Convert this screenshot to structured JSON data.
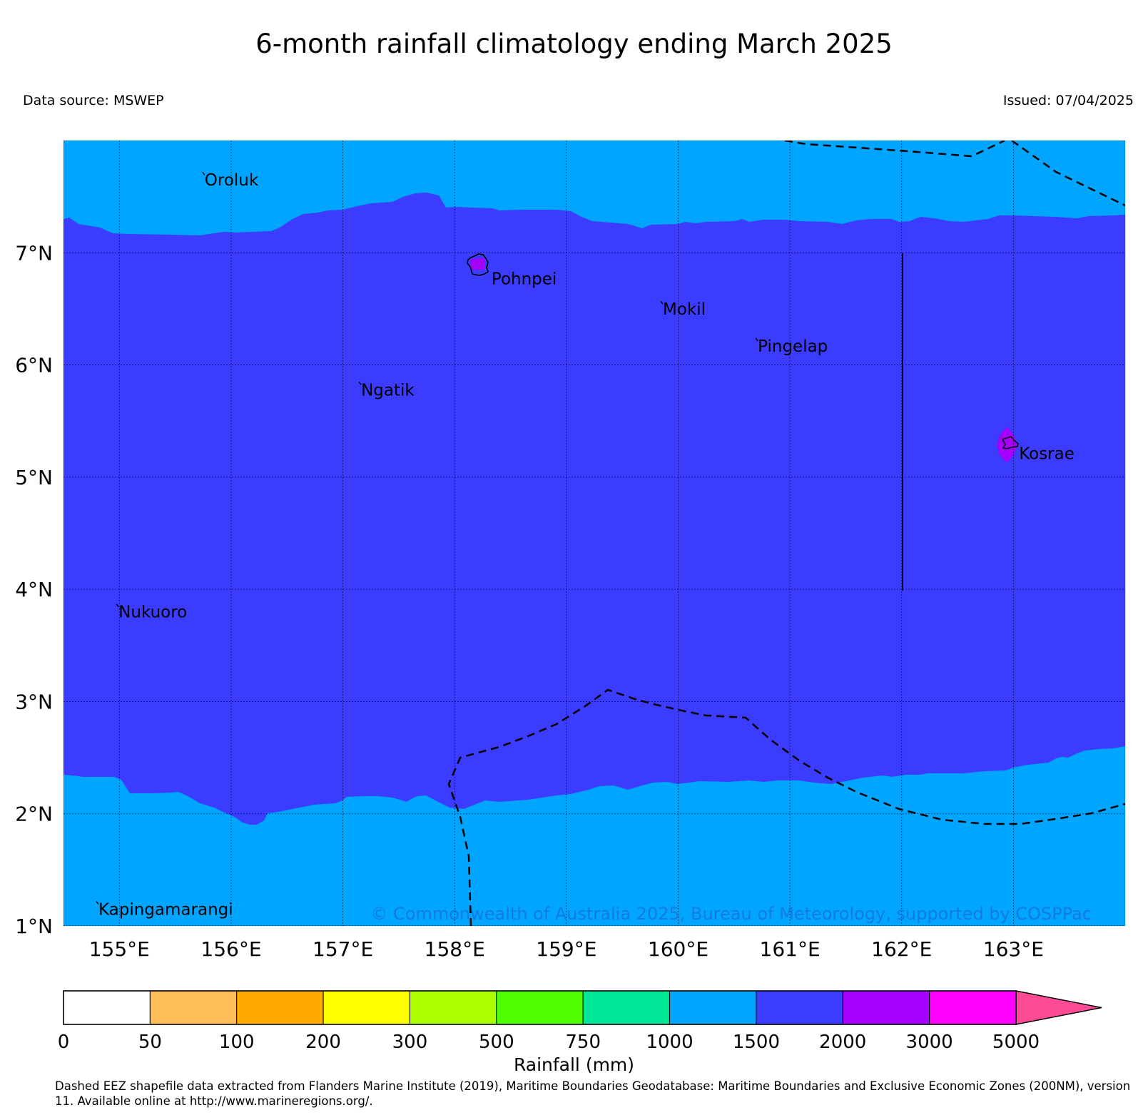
{
  "title": "6-month rainfall climatology ending March 2025",
  "data_source": "Data source: MSWEP",
  "issued": "Issued: 07/04/2025",
  "copyright": "© Commonwealth of Australia 2025, Bureau of Meteorology, supported by COSPPac",
  "footnote": "Dashed EEZ shapefile data extracted from Flanders Marine Institute (2019), Maritime Boundaries Geodatabase: Maritime Boundaries and Exclusive Economic Zones (200NM), version 11. Available online at http://www.marineregions.org/.",
  "map": {
    "lon_range": [
      154.5,
      164.0
    ],
    "lat_range": [
      1.0,
      8.0
    ],
    "lon_ticks": [
      "155°E",
      "156°E",
      "157°E",
      "158°E",
      "159°E",
      "160°E",
      "161°E",
      "162°E",
      "163°E"
    ],
    "lat_ticks": [
      "1°N",
      "2°N",
      "3°N",
      "4°N",
      "5°N",
      "6°N",
      "7°N"
    ],
    "grid": "dotted",
    "fill_base_color": "#00a5ff",
    "fill_main_color": "#3c3cff",
    "fill_high_color": "#a500ff",
    "islands": [
      {
        "name": "Oroluk",
        "lon": 155.75,
        "lat": 7.7
      },
      {
        "name": "Pohnpei",
        "lon": 158.2,
        "lat": 6.88
      },
      {
        "name": "Mokil",
        "lon": 159.85,
        "lat": 6.55
      },
      {
        "name": "Pingelap",
        "lon": 160.7,
        "lat": 6.22
      },
      {
        "name": "Ngatik",
        "lon": 157.15,
        "lat": 5.83
      },
      {
        "name": "Kosrae",
        "lon": 163.0,
        "lat": 5.33
      },
      {
        "name": "Nukuoro",
        "lon": 154.98,
        "lat": 3.85
      },
      {
        "name": "Kapingamarangi",
        "lon": 154.8,
        "lat": 1.2
      }
    ]
  },
  "legend": {
    "title": "Rainfall (mm)",
    "labels": [
      "0",
      "50",
      "100",
      "200",
      "300",
      "500",
      "750",
      "1000",
      "1500",
      "2000",
      "3000",
      "5000"
    ],
    "colors": [
      "#ffffff",
      "#ffbe5a",
      "#ffaa00",
      "#ffff00",
      "#aaff00",
      "#50ff00",
      "#00e696",
      "#00a5ff",
      "#3c3cff",
      "#a500ff",
      "#ff00ff",
      "#ff4b96"
    ]
  }
}
